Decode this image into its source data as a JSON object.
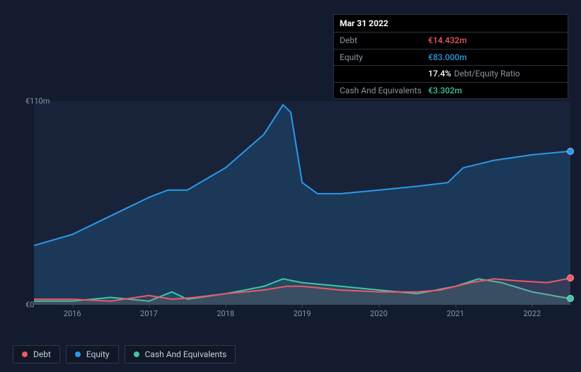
{
  "tooltip": {
    "date": "Mar 31 2022",
    "rows": [
      {
        "label": "Debt",
        "value": "€14.432m",
        "color": "#ef5866"
      },
      {
        "label": "Equity",
        "value": "€83.000m",
        "color": "#2b99e8"
      },
      {
        "label": "",
        "value": "17.4%",
        "color": "#ffffff",
        "sublabel": "Debt/Equity Ratio"
      },
      {
        "label": "Cash And Equivalents",
        "value": "€3.302m",
        "color": "#3ec7a5"
      }
    ]
  },
  "chart": {
    "type": "area",
    "background_color": "#18233a",
    "page_background": "#131c2e",
    "ylim": [
      0,
      110
    ],
    "yticks": [
      {
        "v": 110,
        "label": "€110m"
      },
      {
        "v": 0,
        "label": "€0"
      }
    ],
    "x_years": [
      2015.5,
      2022.5
    ],
    "xticks": [
      2016,
      2017,
      2018,
      2019,
      2020,
      2021,
      2022
    ],
    "label_fontsize": 11,
    "label_color": "#8a95a5",
    "series": [
      {
        "name": "Equity",
        "color": "#2b99e8",
        "fill": "rgba(43,153,232,0.18)",
        "line_width": 2,
        "points": [
          [
            2015.5,
            32
          ],
          [
            2016.0,
            38
          ],
          [
            2016.5,
            48
          ],
          [
            2017.0,
            58
          ],
          [
            2017.25,
            62
          ],
          [
            2017.5,
            62
          ],
          [
            2018.0,
            74
          ],
          [
            2018.5,
            92
          ],
          [
            2018.75,
            108
          ],
          [
            2018.85,
            104
          ],
          [
            2019.0,
            66
          ],
          [
            2019.2,
            60
          ],
          [
            2019.5,
            60
          ],
          [
            2020.0,
            62
          ],
          [
            2020.5,
            64
          ],
          [
            2020.9,
            66
          ],
          [
            2021.1,
            74
          ],
          [
            2021.5,
            78
          ],
          [
            2022.0,
            81
          ],
          [
            2022.5,
            83
          ]
        ]
      },
      {
        "name": "Debt",
        "color": "#ef5866",
        "fill": "rgba(239,88,102,0.12)",
        "line_width": 2,
        "points": [
          [
            2015.5,
            3
          ],
          [
            2016.0,
            3
          ],
          [
            2016.5,
            2
          ],
          [
            2017.0,
            5
          ],
          [
            2017.3,
            3
          ],
          [
            2017.6,
            4
          ],
          [
            2018.0,
            6
          ],
          [
            2018.5,
            8
          ],
          [
            2018.8,
            10
          ],
          [
            2019.0,
            10
          ],
          [
            2019.5,
            8
          ],
          [
            2020.0,
            7
          ],
          [
            2020.5,
            7
          ],
          [
            2020.8,
            8
          ],
          [
            2021.2,
            12
          ],
          [
            2021.5,
            14
          ],
          [
            2021.8,
            13
          ],
          [
            2022.2,
            12
          ],
          [
            2022.5,
            14.4
          ]
        ]
      },
      {
        "name": "Cash And Equivalents",
        "color": "#3ec7a5",
        "fill": "rgba(62,199,165,0.14)",
        "line_width": 2,
        "points": [
          [
            2015.5,
            2
          ],
          [
            2016.0,
            2
          ],
          [
            2016.5,
            4
          ],
          [
            2017.0,
            2
          ],
          [
            2017.3,
            7
          ],
          [
            2017.5,
            3
          ],
          [
            2018.0,
            6
          ],
          [
            2018.5,
            10
          ],
          [
            2018.75,
            14
          ],
          [
            2019.0,
            12
          ],
          [
            2019.5,
            10
          ],
          [
            2020.0,
            8
          ],
          [
            2020.5,
            6
          ],
          [
            2021.0,
            10
          ],
          [
            2021.3,
            14
          ],
          [
            2021.6,
            12
          ],
          [
            2022.0,
            7
          ],
          [
            2022.5,
            3.3
          ]
        ]
      }
    ]
  },
  "legend": {
    "items": [
      {
        "label": "Debt",
        "color": "#ef5866"
      },
      {
        "label": "Equity",
        "color": "#2b99e8"
      },
      {
        "label": "Cash And Equivalents",
        "color": "#3ec7a5"
      }
    ],
    "border_color": "#2f3a4e",
    "text_color": "#c5cdd8",
    "fontsize": 12
  }
}
